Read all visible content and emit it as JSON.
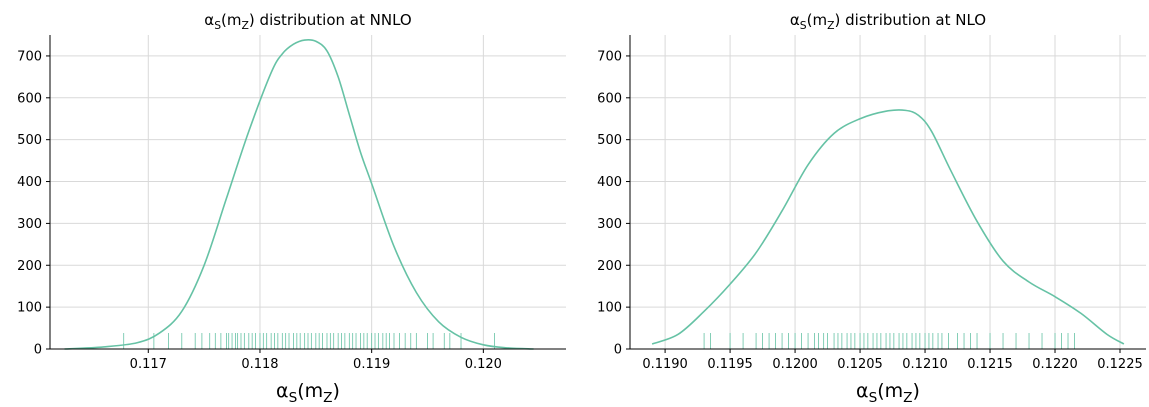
{
  "chart_data": [
    {
      "type": "line",
      "title": {
        "pre": "α",
        "sub1": "S",
        "mid": "(m",
        "sub2": "Z",
        "post": ") distribution at NNLO"
      },
      "xlabel": {
        "pre": "α",
        "sub1": "S",
        "mid": "(m",
        "sub2": "Z",
        "post": ")"
      },
      "ylabel": "",
      "xlim": [
        0.11612,
        0.12074
      ],
      "ylim": [
        0,
        750
      ],
      "xticks": [
        0.117,
        0.118,
        0.119,
        0.12
      ],
      "xtick_labels": [
        "0.117",
        "0.118",
        "0.119",
        "0.120"
      ],
      "yticks": [
        0,
        100,
        200,
        300,
        400,
        500,
        600,
        700
      ],
      "ytick_labels": [
        "0",
        "100",
        "200",
        "300",
        "400",
        "500",
        "600",
        "700"
      ],
      "grid": true,
      "color": "#66c2a5",
      "series": [
        {
          "x": [
            0.11625,
            0.1166,
            0.1169,
            0.1171,
            0.1173,
            0.1175,
            0.1177,
            0.1179,
            0.1181,
            0.1182,
            0.1183,
            0.1184,
            0.1185,
            0.1186,
            0.1187,
            0.1188,
            0.1189,
            0.119,
            0.1192,
            0.1194,
            0.1196,
            0.1198,
            0.12,
            0.1202,
            0.12045
          ],
          "y": [
            0,
            5,
            15,
            38,
            90,
            200,
            360,
            520,
            660,
            705,
            728,
            738,
            735,
            712,
            650,
            560,
            470,
            395,
            245,
            135,
            65,
            28,
            10,
            3,
            0
          ]
        }
      ],
      "rug": [
        0.11678,
        0.11705,
        0.11718,
        0.1173,
        0.11742,
        0.11748,
        0.11755,
        0.1176,
        0.11765,
        0.1177,
        0.11772,
        0.11775,
        0.11778,
        0.1178,
        0.11783,
        0.11786,
        0.1179,
        0.11793,
        0.11796,
        0.118,
        0.11803,
        0.11806,
        0.1181,
        0.11813,
        0.11816,
        0.1182,
        0.11823,
        0.11826,
        0.1183,
        0.11833,
        0.11836,
        0.1184,
        0.11843,
        0.11846,
        0.1185,
        0.11853,
        0.11856,
        0.1186,
        0.11863,
        0.11866,
        0.1187,
        0.11873,
        0.11876,
        0.1188,
        0.11883,
        0.11886,
        0.1189,
        0.11893,
        0.11896,
        0.119,
        0.11903,
        0.11906,
        0.1191,
        0.11913,
        0.11916,
        0.1192,
        0.11925,
        0.1193,
        0.11935,
        0.1194,
        0.1195,
        0.11955,
        0.11965,
        0.1197,
        0.1198,
        0.1201
      ]
    },
    {
      "type": "line",
      "title": {
        "pre": "α",
        "sub1": "S",
        "mid": "(m",
        "sub2": "Z",
        "post": ") distribution at NLO"
      },
      "xlabel": {
        "pre": "α",
        "sub1": "S",
        "mid": "(m",
        "sub2": "Z",
        "post": ")"
      },
      "ylabel": "",
      "xlim": [
        0.11873,
        0.1227
      ],
      "ylim": [
        0,
        750
      ],
      "xticks": [
        0.119,
        0.1195,
        0.12,
        0.1205,
        0.121,
        0.1215,
        0.122,
        0.1225
      ],
      "xtick_labels": [
        "0.1190",
        "0.1195",
        "0.1200",
        "0.1205",
        "0.1210",
        "0.1215",
        "0.1220",
        "0.1225"
      ],
      "yticks": [
        0,
        100,
        200,
        300,
        400,
        500,
        600,
        700
      ],
      "ytick_labels": [
        "0",
        "100",
        "200",
        "300",
        "400",
        "500",
        "600",
        "700"
      ],
      "grid": true,
      "color": "#66c2a5",
      "series": [
        {
          "x": [
            0.1189,
            0.1191,
            0.1193,
            0.1195,
            0.1197,
            0.1199,
            0.1201,
            0.1203,
            0.1205,
            0.1207,
            0.12085,
            0.12095,
            0.12105,
            0.1212,
            0.1214,
            0.1216,
            0.1218,
            0.122,
            0.1222,
            0.1224,
            0.12253
          ],
          "y": [
            12,
            35,
            90,
            155,
            230,
            330,
            440,
            515,
            550,
            568,
            570,
            558,
            520,
            425,
            305,
            210,
            160,
            125,
            85,
            35,
            12
          ]
        }
      ],
      "rug": [
        0.1193,
        0.11935,
        0.1195,
        0.1196,
        0.1197,
        0.11975,
        0.1198,
        0.11985,
        0.1199,
        0.11995,
        0.12,
        0.12005,
        0.1201,
        0.12015,
        0.12018,
        0.12022,
        0.12025,
        0.1203,
        0.12033,
        0.12036,
        0.1204,
        0.12043,
        0.12046,
        0.1205,
        0.12053,
        0.12056,
        0.1206,
        0.12063,
        0.12066,
        0.1207,
        0.12073,
        0.12076,
        0.1208,
        0.12083,
        0.12086,
        0.1209,
        0.12093,
        0.12096,
        0.121,
        0.12103,
        0.12106,
        0.1211,
        0.12113,
        0.12118,
        0.12125,
        0.1213,
        0.12135,
        0.1214,
        0.1215,
        0.1216,
        0.1217,
        0.1218,
        0.1219,
        0.122,
        0.12205,
        0.1221,
        0.12215
      ]
    }
  ]
}
